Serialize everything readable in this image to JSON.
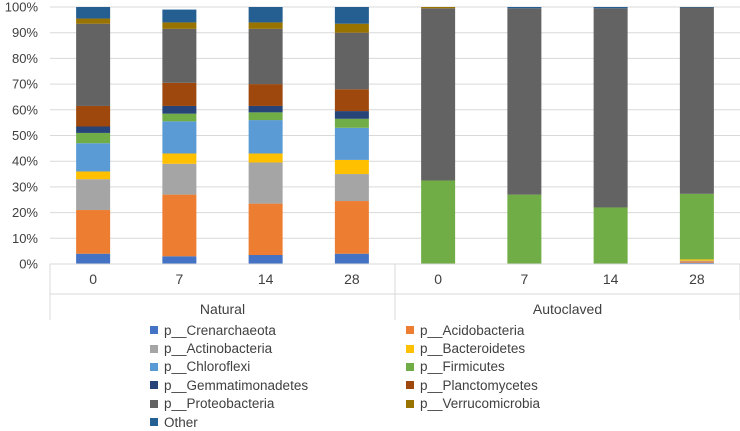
{
  "chart_data": {
    "type": "bar",
    "stacked": true,
    "percent": true,
    "ylim": [
      0,
      100
    ],
    "y_ticks": [
      "0%",
      "10%",
      "20%",
      "30%",
      "40%",
      "50%",
      "60%",
      "70%",
      "80%",
      "90%",
      "100%"
    ],
    "groups": [
      {
        "name": "Natural",
        "categories": [
          "0",
          "7",
          "14",
          "28"
        ]
      },
      {
        "name": "Autoclaved",
        "categories": [
          "0",
          "7",
          "14",
          "28"
        ]
      }
    ],
    "series": [
      {
        "name": "p__Crenarchaeota",
        "color": "#4472c4",
        "values": [
          4,
          3,
          3.5,
          4,
          0,
          0,
          0,
          0.5
        ]
      },
      {
        "name": "p__Acidobacteria",
        "color": "#ed7d31",
        "values": [
          17,
          24,
          20,
          20.5,
          0,
          0,
          0,
          0.5
        ]
      },
      {
        "name": "p__Actinobacteria",
        "color": "#a5a5a5",
        "values": [
          12,
          12,
          16,
          10.5,
          0,
          0,
          0,
          0.3
        ]
      },
      {
        "name": "p__Bacteroidetes",
        "color": "#ffc000",
        "values": [
          3,
          4,
          3.5,
          5.5,
          0,
          0,
          0,
          0.5
        ]
      },
      {
        "name": "p__Chloroflexi",
        "color": "#5b9bd5",
        "values": [
          11,
          12.5,
          13,
          12.5,
          0,
          0,
          0,
          0
        ]
      },
      {
        "name": "p__Firmicutes",
        "color": "#70ad47",
        "values": [
          4,
          3,
          3,
          3.5,
          32.5,
          27,
          22,
          25.5
        ]
      },
      {
        "name": "p__Gemmatimonadetes",
        "color": "#264478",
        "values": [
          2.5,
          3,
          2.5,
          3,
          0,
          0,
          0,
          0
        ]
      },
      {
        "name": "p__Planctomycetes",
        "color": "#9e480e",
        "values": [
          8,
          9,
          8.5,
          8.5,
          0,
          0,
          0,
          0
        ]
      },
      {
        "name": "p__Proteobacteria",
        "color": "#636363",
        "values": [
          32,
          21,
          21.5,
          22,
          67,
          72.5,
          77.5,
          72.5
        ]
      },
      {
        "name": "p__Verrucomicrobia",
        "color": "#997300",
        "values": [
          2,
          2.5,
          2.5,
          3.5,
          0.5,
          0,
          0,
          0
        ]
      },
      {
        "name": "Other",
        "color": "#255e91",
        "values": [
          4.5,
          5,
          6,
          6.5,
          0,
          0.5,
          0.5,
          0.2
        ]
      }
    ]
  }
}
